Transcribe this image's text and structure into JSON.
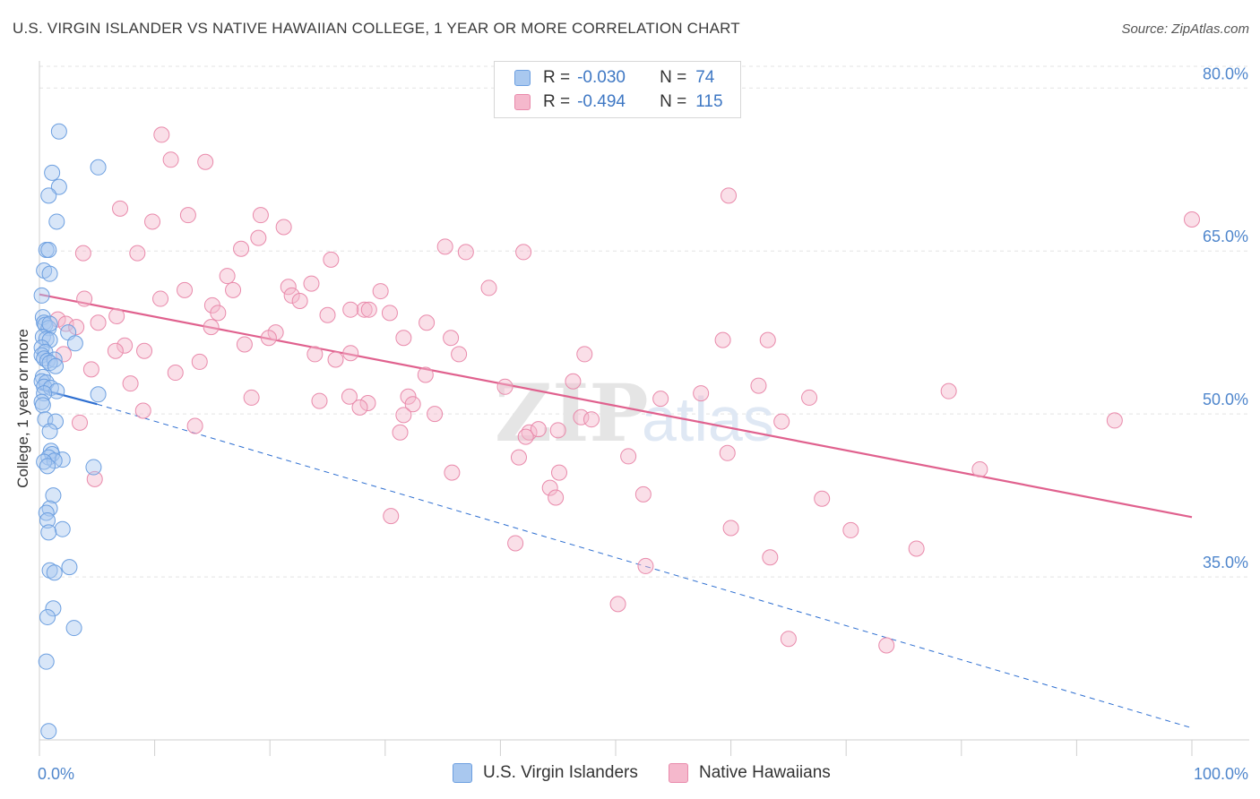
{
  "title": "U.S. VIRGIN ISLANDER VS NATIVE HAWAIIAN COLLEGE, 1 YEAR OR MORE CORRELATION CHART",
  "source": "Source: ZipAtlas.com",
  "watermark": {
    "zip": "ZIP",
    "atlas": "atlas"
  },
  "legend": {
    "rows": [
      {
        "r_label": "R =",
        "r_value": "-0.030",
        "n_label": "N =",
        "n_value": "74"
      },
      {
        "r_label": "R =",
        "r_value": "-0.494",
        "n_label": "N =",
        "n_value": "115"
      }
    ]
  },
  "bottom_legend": {
    "series1": "U.S. Virgin Islanders",
    "series2": "Native Hawaiians"
  },
  "colors": {
    "blue_fill": "#a9c8ef",
    "blue_stroke": "#6c9fe0",
    "blue_line": "#2e6fd1",
    "pink_fill": "#f5b8cc",
    "pink_stroke": "#e98aab",
    "pink_line": "#e0618e",
    "tick_label": "#4f86cc",
    "grid": "#e3e3e3"
  },
  "chart_data": {
    "type": "scatter",
    "xlabel": "",
    "ylabel": "College, 1 year or more",
    "xlim": [
      0,
      100
    ],
    "ylim": [
      20,
      82
    ],
    "x_tick_labels": [
      "0.0%",
      "100.0%"
    ],
    "y_ticks": [
      35,
      50,
      65,
      80
    ],
    "y_tick_labels": [
      "35.0%",
      "50.0%",
      "65.0%",
      "80.0%"
    ],
    "grid": "horizontal dashed",
    "legend_position": "top-center",
    "series": [
      {
        "name": "U.S. Virgin Islanders",
        "color": "blue",
        "R": -0.03,
        "N": 74,
        "trend_solid": [
          [
            0,
            52.3
          ],
          [
            5.0,
            50.9
          ]
        ],
        "trend_dashed": [
          [
            5.0,
            50.9
          ],
          [
            100,
            21.1
          ]
        ],
        "points": [
          [
            1.7,
            76.0
          ],
          [
            5.1,
            72.7
          ],
          [
            1.1,
            72.2
          ],
          [
            1.7,
            70.9
          ],
          [
            0.8,
            70.1
          ],
          [
            1.5,
            67.7
          ],
          [
            0.6,
            65.1
          ],
          [
            0.8,
            65.1
          ],
          [
            0.4,
            63.2
          ],
          [
            0.9,
            62.9
          ],
          [
            0.2,
            60.9
          ],
          [
            0.3,
            58.9
          ],
          [
            0.4,
            58.4
          ],
          [
            0.5,
            58.2
          ],
          [
            0.8,
            57.9
          ],
          [
            0.9,
            58.3
          ],
          [
            2.5,
            57.5
          ],
          [
            0.3,
            57.1
          ],
          [
            0.6,
            56.9
          ],
          [
            0.9,
            56.8
          ],
          [
            3.1,
            56.5
          ],
          [
            0.2,
            56.1
          ],
          [
            0.5,
            55.7
          ],
          [
            0.2,
            55.4
          ],
          [
            0.4,
            55.1
          ],
          [
            0.7,
            54.9
          ],
          [
            1.3,
            55.0
          ],
          [
            0.9,
            54.7
          ],
          [
            1.4,
            54.4
          ],
          [
            0.3,
            53.4
          ],
          [
            0.2,
            53.0
          ],
          [
            0.6,
            52.9
          ],
          [
            0.4,
            52.5
          ],
          [
            1.0,
            52.4
          ],
          [
            1.5,
            52.1
          ],
          [
            5.1,
            51.8
          ],
          [
            0.4,
            51.9
          ],
          [
            0.2,
            51.1
          ],
          [
            0.3,
            50.8
          ],
          [
            0.5,
            49.5
          ],
          [
            1.4,
            49.3
          ],
          [
            0.9,
            48.4
          ],
          [
            1.0,
            46.6
          ],
          [
            1.1,
            46.3
          ],
          [
            0.8,
            46.0
          ],
          [
            2.0,
            45.8
          ],
          [
            1.3,
            45.7
          ],
          [
            0.4,
            45.6
          ],
          [
            0.7,
            45.2
          ],
          [
            4.7,
            45.1
          ],
          [
            1.2,
            42.5
          ],
          [
            0.9,
            41.3
          ],
          [
            0.6,
            40.9
          ],
          [
            0.7,
            40.2
          ],
          [
            2.0,
            39.4
          ],
          [
            0.8,
            39.1
          ],
          [
            2.6,
            35.9
          ],
          [
            0.9,
            35.6
          ],
          [
            1.3,
            35.4
          ],
          [
            1.2,
            32.1
          ],
          [
            0.7,
            31.3
          ],
          [
            3.0,
            30.3
          ],
          [
            0.6,
            27.2
          ],
          [
            0.8,
            20.8
          ]
        ]
      },
      {
        "name": "Native Hawaiians",
        "color": "pink",
        "R": -0.494,
        "N": 115,
        "trend": [
          [
            0,
            61.0
          ],
          [
            100,
            40.5
          ]
        ],
        "points": [
          [
            10.6,
            75.7
          ],
          [
            11.4,
            73.4
          ],
          [
            14.4,
            73.2
          ],
          [
            59.8,
            70.1
          ],
          [
            100.0,
            67.9
          ],
          [
            7.0,
            68.9
          ],
          [
            12.9,
            68.3
          ],
          [
            19.2,
            68.3
          ],
          [
            9.8,
            67.7
          ],
          [
            21.2,
            67.2
          ],
          [
            19.0,
            66.2
          ],
          [
            3.8,
            64.8
          ],
          [
            8.5,
            64.8
          ],
          [
            17.5,
            65.2
          ],
          [
            35.2,
            65.4
          ],
          [
            37.0,
            64.9
          ],
          [
            42.0,
            64.9
          ],
          [
            25.3,
            64.2
          ],
          [
            16.3,
            62.7
          ],
          [
            21.6,
            61.7
          ],
          [
            23.6,
            62.0
          ],
          [
            39.0,
            61.6
          ],
          [
            12.6,
            61.4
          ],
          [
            16.8,
            61.4
          ],
          [
            21.9,
            60.9
          ],
          [
            29.6,
            61.3
          ],
          [
            3.9,
            60.6
          ],
          [
            10.5,
            60.6
          ],
          [
            15.0,
            60.0
          ],
          [
            22.6,
            60.4
          ],
          [
            28.2,
            59.6
          ],
          [
            27.0,
            59.6
          ],
          [
            28.6,
            59.6
          ],
          [
            30.4,
            59.3
          ],
          [
            6.7,
            59.0
          ],
          [
            15.5,
            59.3
          ],
          [
            25.0,
            59.1
          ],
          [
            33.6,
            58.4
          ],
          [
            1.6,
            58.7
          ],
          [
            2.3,
            58.3
          ],
          [
            3.2,
            58.0
          ],
          [
            5.1,
            58.4
          ],
          [
            14.9,
            58.0
          ],
          [
            20.5,
            57.5
          ],
          [
            19.9,
            57.0
          ],
          [
            31.6,
            57.0
          ],
          [
            35.7,
            57.0
          ],
          [
            59.3,
            56.8
          ],
          [
            63.2,
            56.8
          ],
          [
            7.4,
            56.3
          ],
          [
            17.8,
            56.4
          ],
          [
            6.6,
            55.8
          ],
          [
            9.1,
            55.8
          ],
          [
            36.4,
            55.5
          ],
          [
            2.1,
            55.5
          ],
          [
            27.0,
            55.6
          ],
          [
            23.9,
            55.5
          ],
          [
            47.3,
            55.5
          ],
          [
            25.7,
            55.0
          ],
          [
            13.9,
            54.8
          ],
          [
            4.5,
            54.1
          ],
          [
            11.8,
            53.8
          ],
          [
            33.5,
            53.6
          ],
          [
            7.9,
            52.8
          ],
          [
            40.4,
            52.5
          ],
          [
            46.3,
            53.0
          ],
          [
            62.4,
            52.6
          ],
          [
            57.4,
            51.9
          ],
          [
            78.9,
            52.1
          ],
          [
            18.4,
            51.5
          ],
          [
            24.3,
            51.2
          ],
          [
            26.9,
            51.6
          ],
          [
            32.0,
            51.6
          ],
          [
            53.9,
            51.4
          ],
          [
            66.8,
            51.5
          ],
          [
            28.5,
            51.0
          ],
          [
            32.4,
            50.9
          ],
          [
            34.3,
            50.0
          ],
          [
            27.8,
            50.6
          ],
          [
            9.0,
            50.3
          ],
          [
            31.6,
            49.9
          ],
          [
            47.0,
            49.7
          ],
          [
            47.9,
            49.5
          ],
          [
            93.3,
            49.4
          ],
          [
            3.5,
            49.2
          ],
          [
            64.4,
            49.3
          ],
          [
            13.5,
            48.9
          ],
          [
            45.0,
            48.5
          ],
          [
            31.3,
            48.3
          ],
          [
            42.5,
            48.3
          ],
          [
            43.3,
            48.6
          ],
          [
            42.2,
            47.9
          ],
          [
            59.7,
            46.4
          ],
          [
            51.1,
            46.1
          ],
          [
            41.6,
            46.0
          ],
          [
            4.8,
            44.0
          ],
          [
            35.8,
            44.6
          ],
          [
            45.1,
            44.6
          ],
          [
            81.6,
            44.9
          ],
          [
            44.3,
            43.2
          ],
          [
            52.4,
            42.6
          ],
          [
            44.8,
            42.3
          ],
          [
            67.9,
            42.2
          ],
          [
            30.5,
            40.6
          ],
          [
            60.0,
            39.5
          ],
          [
            70.4,
            39.3
          ],
          [
            41.3,
            38.1
          ],
          [
            76.1,
            37.6
          ],
          [
            63.4,
            36.8
          ],
          [
            52.6,
            36.0
          ],
          [
            50.2,
            32.5
          ],
          [
            65.0,
            29.3
          ],
          [
            73.5,
            28.7
          ]
        ]
      }
    ]
  }
}
